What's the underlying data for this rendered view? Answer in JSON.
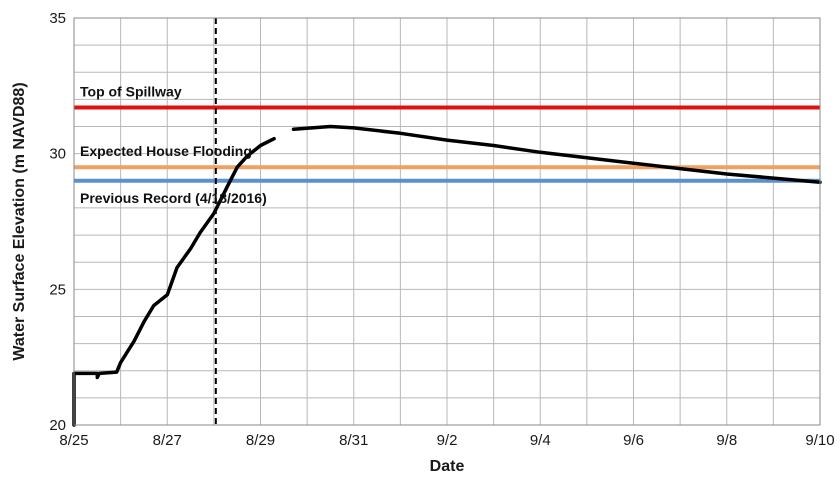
{
  "chart_data": {
    "type": "line",
    "xlabel": "Date",
    "ylabel": "Water Surface Elevation (m NAVD88)",
    "xlim": [
      "8/25",
      "9/10"
    ],
    "x_tick_labels": [
      "8/25",
      "8/27",
      "8/29",
      "8/31",
      "9/2",
      "9/4",
      "9/6",
      "9/8",
      "9/10"
    ],
    "ylim": [
      20,
      35
    ],
    "y_tick_labels": [
      "20",
      "25",
      "30",
      "35"
    ],
    "grid": true,
    "reference_lines": [
      {
        "label": "Top of Spillway",
        "y": 31.7,
        "color": "#e01010"
      },
      {
        "label": "Expected House Flooding",
        "y": 29.5,
        "color": "#f0a060"
      },
      {
        "label": "Previous Record (4/18/2016)",
        "y": 29.0,
        "color": "#5b8fd0"
      }
    ],
    "vertical_marker": {
      "x": "8/28 1:00",
      "style": "dashed",
      "color": "#000000"
    },
    "series": [
      {
        "color": "#000000",
        "segments": [
          [
            [
              "8/25 0:00",
              20.0
            ],
            [
              "8/25 0:00",
              21.9
            ],
            [
              "8/25 12:00",
              21.9
            ],
            [
              "8/25 12:00",
              21.75
            ],
            [
              "8/25 13:00",
              21.9
            ],
            [
              "8/25 22:00",
              21.95
            ],
            [
              "8/26 0:00",
              22.3
            ],
            [
              "8/26 7:00",
              23.1
            ],
            [
              "8/26 12:00",
              23.8
            ],
            [
              "8/26 17:00",
              24.4
            ],
            [
              "8/27 0:00",
              24.8
            ],
            [
              "8/27 5:00",
              25.8
            ],
            [
              "8/27 12:00",
              26.5
            ],
            [
              "8/27 17:00",
              27.1
            ],
            [
              "8/28 0:00",
              27.8
            ],
            [
              "8/28 7:00",
              28.8
            ],
            [
              "8/28 12:00",
              29.5
            ],
            [
              "8/28 17:00",
              29.9
            ],
            [
              "8/29 0:00",
              30.3
            ],
            [
              "8/29 7:00",
              30.55
            ]
          ],
          [
            [
              "8/29 17:00",
              30.9
            ],
            [
              "8/30 12:00",
              31.0
            ],
            [
              "8/31 0:00",
              30.95
            ],
            [
              "9/1 0:00",
              30.75
            ],
            [
              "9/2 0:00",
              30.5
            ],
            [
              "9/3 0:00",
              30.3
            ],
            [
              "9/4 0:00",
              30.05
            ],
            [
              "9/5 0:00",
              29.85
            ],
            [
              "9/6 0:00",
              29.65
            ],
            [
              "9/7 0:00",
              29.45
            ],
            [
              "9/8 0:00",
              29.25
            ],
            [
              "9/9 0:00",
              29.1
            ],
            [
              "9/10 0:00",
              28.95
            ]
          ]
        ]
      }
    ]
  }
}
